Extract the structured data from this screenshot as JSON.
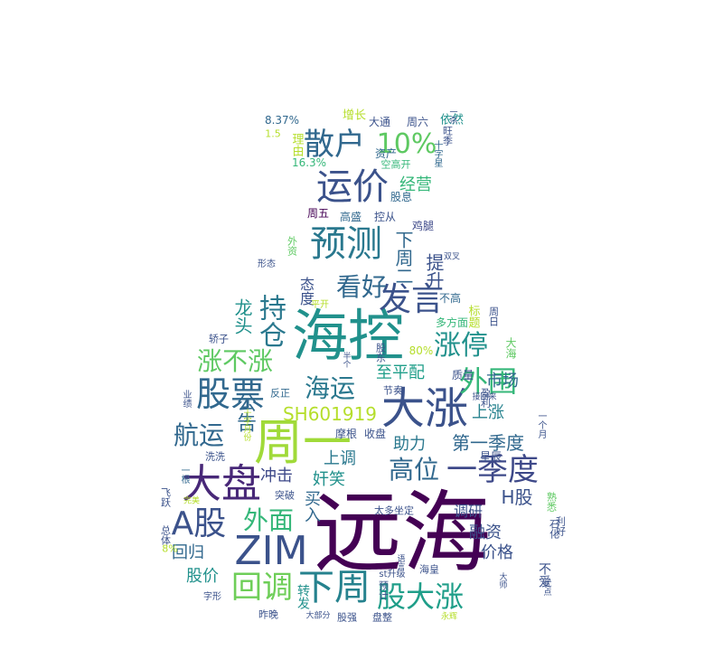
{
  "words": [
    {
      "text": "远海",
      "size": 98,
      "color": "#440154"
    },
    {
      "text": "海控",
      "size": 62,
      "color": "#21918c"
    },
    {
      "text": "周一",
      "size": 54,
      "color": "#a0da39"
    },
    {
      "text": "大涨",
      "size": 48,
      "color": "#3b528b"
    },
    {
      "text": "大盘",
      "size": 44,
      "color": "#482878"
    },
    {
      "text": "ZIM",
      "size": 44,
      "color": "#3b528b"
    },
    {
      "text": "股票",
      "size": 38,
      "color": "#31688e"
    },
    {
      "text": "下周",
      "size": 40,
      "color": "#26828e"
    },
    {
      "text": "一季度",
      "size": 34,
      "color": "#3e4989"
    },
    {
      "text": "A股",
      "size": 36,
      "color": "#3b528b"
    },
    {
      "text": "运价",
      "size": 40,
      "color": "#3b528b"
    },
    {
      "text": "预测",
      "size": 40,
      "color": "#2a788e"
    },
    {
      "text": "散户",
      "size": 34,
      "color": "#31688e"
    },
    {
      "text": "发言",
      "size": 36,
      "color": "#3b528b"
    },
    {
      "text": "外围",
      "size": 32,
      "color": "#35b779"
    },
    {
      "text": "回调",
      "size": 34,
      "color": "#6ece58"
    },
    {
      "text": "股大涨",
      "size": 32,
      "color": "#1f9e89"
    },
    {
      "text": "涨停",
      "size": 30,
      "color": "#21918c"
    },
    {
      "text": "10%",
      "size": 30,
      "color": "#5ec962"
    },
    {
      "text": "持仓",
      "size": 30,
      "color": "#2a788e"
    },
    {
      "text": "看好",
      "size": 28,
      "color": "#31688e"
    },
    {
      "text": "涨不涨",
      "size": 28,
      "color": "#5ec962"
    },
    {
      "text": "海运",
      "size": 28,
      "color": "#2a788e"
    },
    {
      "text": "航运",
      "size": 28,
      "color": "#31688e"
    },
    {
      "text": "外面",
      "size": 28,
      "color": "#35b779"
    },
    {
      "text": "高位",
      "size": 28,
      "color": "#31688e"
    },
    {
      "text": "SH601919",
      "size": 20,
      "color": "#b5de2b"
    },
    {
      "text": "公告",
      "size": 22,
      "color": "#31688e"
    },
    {
      "text": "下周二",
      "size": 20,
      "color": "#31688e"
    },
    {
      "text": "提升",
      "size": 20,
      "color": "#3b528b"
    },
    {
      "text": "龙头",
      "size": 20,
      "color": "#21918c"
    },
    {
      "text": "至平配",
      "size": 18,
      "color": "#1f9e89"
    },
    {
      "text": "第一季度",
      "size": 20,
      "color": "#31688e"
    },
    {
      "text": "市场",
      "size": 18,
      "color": "#31688e"
    },
    {
      "text": "上涨",
      "size": 18,
      "color": "#26828e"
    },
    {
      "text": "助力",
      "size": 18,
      "color": "#2a788e"
    },
    {
      "text": "回归",
      "size": 18,
      "color": "#31688e"
    },
    {
      "text": "冲击",
      "size": 18,
      "color": "#3e4989"
    },
    {
      "text": "奸笑",
      "size": 18,
      "color": "#21918c"
    },
    {
      "text": "上调",
      "size": 18,
      "color": "#2a788e"
    },
    {
      "text": "买入",
      "size": 18,
      "color": "#31688e"
    },
    {
      "text": "股价",
      "size": 18,
      "color": "#21918c"
    },
    {
      "text": "融资",
      "size": 18,
      "color": "#3b528b"
    },
    {
      "text": "价格",
      "size": 18,
      "color": "#3b528b"
    },
    {
      "text": "H股",
      "size": 20,
      "color": "#3b528b"
    },
    {
      "text": "调研",
      "size": 16,
      "color": "#3b528b"
    },
    {
      "text": "经营",
      "size": 18,
      "color": "#35b779"
    },
    {
      "text": "态度",
      "size": 16,
      "color": "#3b528b"
    },
    {
      "text": "转发",
      "size": 14,
      "color": "#21918c"
    },
    {
      "text": "不爱",
      "size": 14,
      "color": "#3b528b"
    },
    {
      "text": "增长",
      "size": 13,
      "color": "#b5de2b"
    },
    {
      "text": "大通",
      "size": 12,
      "color": "#3b528b"
    },
    {
      "text": "周六",
      "size": 12,
      "color": "#3b528b"
    },
    {
      "text": "依然",
      "size": 13,
      "color": "#21918c"
    },
    {
      "text": "8.37%",
      "size": 12,
      "color": "#31688e"
    },
    {
      "text": "理由",
      "size": 13,
      "color": "#b5de2b"
    },
    {
      "text": "1.5",
      "size": 11,
      "color": "#b5de2b"
    },
    {
      "text": "16.3%",
      "size": 12,
      "color": "#35b779"
    },
    {
      "text": "资产",
      "size": 12,
      "color": "#31688e"
    },
    {
      "text": "空高开",
      "size": 11,
      "color": "#35b779"
    },
    {
      "text": "股息",
      "size": 12,
      "color": "#31688e"
    },
    {
      "text": "旺季",
      "size": 11,
      "color": "#3b528b"
    },
    {
      "text": "十字星",
      "size": 10,
      "color": "#31688e"
    },
    {
      "text": "周五",
      "size": 12,
      "color": "#440154"
    },
    {
      "text": "高盛",
      "size": 12,
      "color": "#31688e"
    },
    {
      "text": "控从",
      "size": 12,
      "color": "#3b528b"
    },
    {
      "text": "鸡腿",
      "size": 12,
      "color": "#3e4989"
    },
    {
      "text": "外资",
      "size": 11,
      "color": "#5ec962"
    },
    {
      "text": "形态",
      "size": 10,
      "color": "#3b528b"
    },
    {
      "text": "不高",
      "size": 12,
      "color": "#31688e"
    },
    {
      "text": "双叉",
      "size": 9,
      "color": "#3b528b"
    },
    {
      "text": "标题",
      "size": 13,
      "color": "#b5de2b"
    },
    {
      "text": "多方面",
      "size": 12,
      "color": "#35b779"
    },
    {
      "text": "周日",
      "size": 11,
      "color": "#3b528b"
    },
    {
      "text": "大海",
      "size": 12,
      "color": "#5ec962"
    },
    {
      "text": "80%",
      "size": 12,
      "color": "#b5de2b"
    },
    {
      "text": "股东",
      "size": 11,
      "color": "#3b528b"
    },
    {
      "text": "质量",
      "size": 12,
      "color": "#3b528b"
    },
    {
      "text": "轿子",
      "size": 11,
      "color": "#3b528b"
    },
    {
      "text": "反正",
      "size": 11,
      "color": "#31688e"
    },
    {
      "text": "业绩",
      "size": 10,
      "color": "#3b528b"
    },
    {
      "text": "节奏",
      "size": 11,
      "color": "#3b528b"
    },
    {
      "text": "盈利",
      "size": 11,
      "color": "#3b528b"
    },
    {
      "text": "摩根",
      "size": 12,
      "color": "#3b528b"
    },
    {
      "text": "收盘",
      "size": 12,
      "color": "#3b528b"
    },
    {
      "text": "星辰",
      "size": 12,
      "color": "#3b528b"
    },
    {
      "text": "一个月",
      "size": 10,
      "color": "#3b528b"
    },
    {
      "text": "洗洗",
      "size": 11,
      "color": "#3b528b"
    },
    {
      "text": "一根",
      "size": 10,
      "color": "#31688e"
    },
    {
      "text": "飞跃",
      "size": 11,
      "color": "#3b528b"
    },
    {
      "text": "突破",
      "size": 11,
      "color": "#3b528b"
    },
    {
      "text": "熟悉",
      "size": 11,
      "color": "#5ec962"
    },
    {
      "text": "总体",
      "size": 11,
      "color": "#3b528b"
    },
    {
      "text": "太多坐定",
      "size": 11,
      "color": "#3b528b"
    },
    {
      "text": "石化",
      "size": 11,
      "color": "#3b528b"
    },
    {
      "text": "利好",
      "size": 11,
      "color": "#3b528b"
    },
    {
      "text": "8%",
      "size": 11,
      "color": "#b5de2b"
    },
    {
      "text": "海皇",
      "size": 11,
      "color": "#3b528b"
    },
    {
      "text": "st升级",
      "size": 10,
      "color": "#3b528b"
    },
    {
      "text": "字形",
      "size": 10,
      "color": "#3b528b"
    },
    {
      "text": "昨晚",
      "size": 11,
      "color": "#3b528b"
    },
    {
      "text": "大部分",
      "size": 9,
      "color": "#3b528b"
    },
    {
      "text": "股强",
      "size": 11,
      "color": "#3b528b"
    },
    {
      "text": "盘整",
      "size": 11,
      "color": "#3b528b"
    },
    {
      "text": "永辉",
      "size": 9,
      "color": "#b5de2b"
    },
    {
      "text": "预计",
      "size": 11,
      "color": "#3b528b"
    },
    {
      "text": "大师",
      "size": 9,
      "color": "#3b528b"
    },
    {
      "text": "一杀",
      "size": 9,
      "color": "#3b528b"
    },
    {
      "text": "平开",
      "size": 10,
      "color": "#b5de2b"
    },
    {
      "text": "十字月份",
      "size": 9,
      "color": "#b5de2b"
    },
    {
      "text": "半个",
      "size": 9,
      "color": "#3b528b"
    },
    {
      "text": "接回来",
      "size": 9,
      "color": "#3b528b"
    },
    {
      "text": "语言",
      "size": 9,
      "color": "#3b528b"
    },
    {
      "text": "完美",
      "size": 9,
      "color": "#b5de2b"
    },
    {
      "text": "优点",
      "size": 9,
      "color": "#3b528b"
    }
  ]
}
